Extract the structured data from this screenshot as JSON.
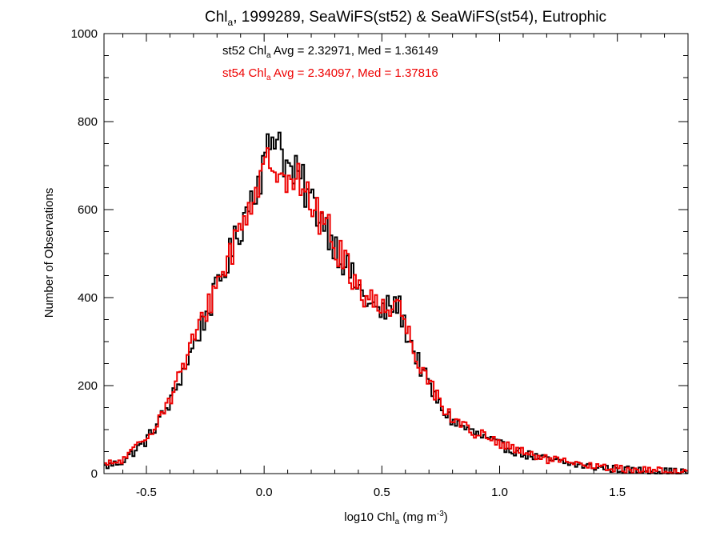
{
  "chart_data": {
    "type": "histogram-step",
    "title": {
      "main": "Chl",
      "main_sub": "a",
      "rest": ", 1999289, SeaWiFS(st52) & SeaWiFS(st54), Eutrophic"
    },
    "xlabel": {
      "pre": "log10 Chl",
      "sub": "a",
      "mid": " (mg m",
      "sup": "-3",
      "post": ")"
    },
    "ylabel": "Number of Observations",
    "xlim": [
      -0.68,
      1.8
    ],
    "ylim": [
      0,
      1000
    ],
    "x_ticks": [
      -0.5,
      0.0,
      0.5,
      1.0,
      1.5
    ],
    "x_tick_labels": [
      "-0.5",
      "0.0",
      "0.5",
      "1.0",
      "1.5"
    ],
    "y_ticks": [
      0,
      200,
      400,
      600,
      800,
      1000
    ],
    "y_tick_labels": [
      "0",
      "200",
      "400",
      "600",
      "800",
      "1000"
    ],
    "x_minor_step": 0.1,
    "y_minor_step": 50,
    "grid": false,
    "bin_width": 0.01,
    "annotations": [
      {
        "pre": "st52 Chl",
        "sub": "a",
        "post": " Avg = 2.32971, Med = 1.36149",
        "color": "#000000"
      },
      {
        "pre": "st54 Chl",
        "sub": "a",
        "post": " Avg = 2.34097, Med = 1.37816",
        "color": "#ee0000"
      }
    ],
    "series": [
      {
        "id": "st52",
        "color": "#000000",
        "points": [
          [
            -0.68,
            15
          ],
          [
            -0.6,
            28
          ],
          [
            -0.5,
            75
          ],
          [
            -0.4,
            160
          ],
          [
            -0.3,
            290
          ],
          [
            -0.2,
            420
          ],
          [
            -0.1,
            560
          ],
          [
            -0.05,
            640
          ],
          [
            0.0,
            700
          ],
          [
            0.03,
            760
          ],
          [
            0.05,
            790
          ],
          [
            0.08,
            730
          ],
          [
            0.1,
            690
          ],
          [
            0.15,
            670
          ],
          [
            0.2,
            620
          ],
          [
            0.25,
            580
          ],
          [
            0.3,
            520
          ],
          [
            0.35,
            470
          ],
          [
            0.4,
            420
          ],
          [
            0.45,
            385
          ],
          [
            0.5,
            360
          ],
          [
            0.53,
            380
          ],
          [
            0.57,
            385
          ],
          [
            0.6,
            330
          ],
          [
            0.65,
            260
          ],
          [
            0.7,
            200
          ],
          [
            0.75,
            150
          ],
          [
            0.8,
            120
          ],
          [
            0.9,
            90
          ],
          [
            1.0,
            65
          ],
          [
            1.1,
            45
          ],
          [
            1.2,
            32
          ],
          [
            1.3,
            22
          ],
          [
            1.4,
            15
          ],
          [
            1.5,
            10
          ],
          [
            1.6,
            7
          ],
          [
            1.7,
            5
          ],
          [
            1.8,
            3
          ]
        ]
      },
      {
        "id": "st54",
        "color": "#ee0000",
        "points": [
          [
            -0.68,
            18
          ],
          [
            -0.6,
            30
          ],
          [
            -0.5,
            80
          ],
          [
            -0.4,
            170
          ],
          [
            -0.3,
            300
          ],
          [
            -0.2,
            430
          ],
          [
            -0.1,
            560
          ],
          [
            -0.05,
            630
          ],
          [
            0.0,
            680
          ],
          [
            0.03,
            705
          ],
          [
            0.05,
            715
          ],
          [
            0.08,
            700
          ],
          [
            0.1,
            680
          ],
          [
            0.15,
            660
          ],
          [
            0.2,
            610
          ],
          [
            0.25,
            575
          ],
          [
            0.3,
            520
          ],
          [
            0.35,
            475
          ],
          [
            0.4,
            425
          ],
          [
            0.45,
            395
          ],
          [
            0.5,
            375
          ],
          [
            0.53,
            385
          ],
          [
            0.57,
            390
          ],
          [
            0.6,
            340
          ],
          [
            0.65,
            265
          ],
          [
            0.7,
            210
          ],
          [
            0.75,
            160
          ],
          [
            0.8,
            125
          ],
          [
            0.9,
            92
          ],
          [
            1.0,
            68
          ],
          [
            1.1,
            47
          ],
          [
            1.2,
            33
          ],
          [
            1.3,
            23
          ],
          [
            1.4,
            16
          ],
          [
            1.5,
            11
          ],
          [
            1.6,
            8
          ],
          [
            1.7,
            6
          ],
          [
            1.8,
            4
          ]
        ]
      }
    ]
  }
}
